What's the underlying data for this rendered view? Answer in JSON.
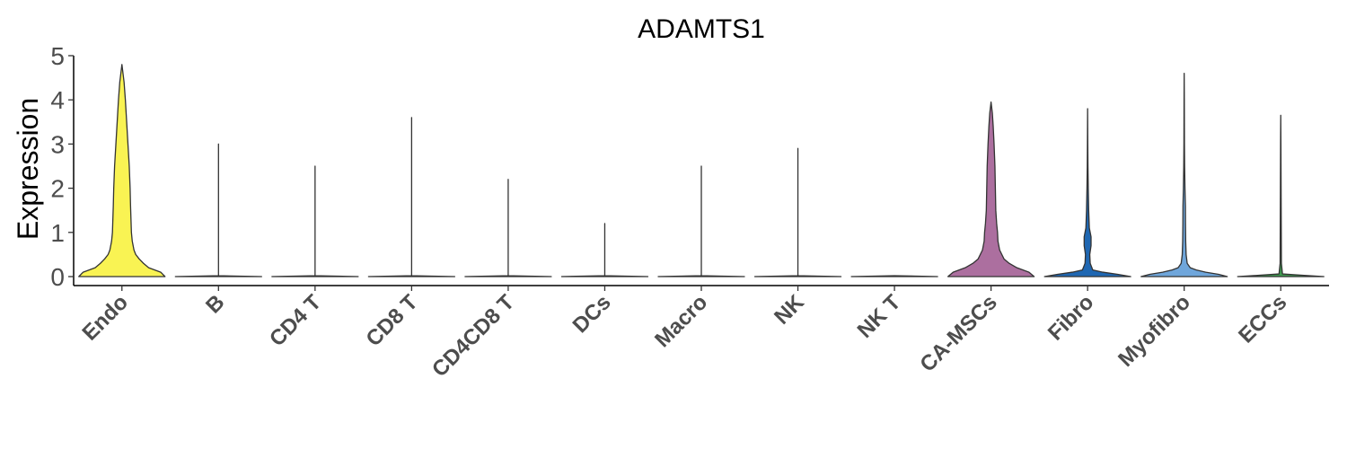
{
  "chart_data": {
    "type": "violin",
    "title": "ADAMTS1",
    "xlabel": "",
    "ylabel": "Expression",
    "ylim": [
      0,
      5
    ],
    "yticks": [
      0,
      1,
      2,
      3,
      4,
      5
    ],
    "grid": false,
    "legend": "none",
    "categories": [
      "Endo",
      "B",
      "CD4 T",
      "CD8 T",
      "CD4CD8 T",
      "DCs",
      "Macro",
      "NK",
      "NK T",
      "CA-MSCs",
      "Fibro",
      "Myofibro",
      "ECCs"
    ],
    "series": [
      {
        "category": "Endo",
        "max": 4.8,
        "color": "#F9F353",
        "density": [
          [
            0,
            1.0
          ],
          [
            0.1,
            0.9
          ],
          [
            0.2,
            0.62
          ],
          [
            0.3,
            0.5
          ],
          [
            0.4,
            0.4
          ],
          [
            0.5,
            0.32
          ],
          [
            0.6,
            0.28
          ],
          [
            0.8,
            0.24
          ],
          [
            1.0,
            0.22
          ],
          [
            1.3,
            0.21
          ],
          [
            1.6,
            0.2
          ],
          [
            2.0,
            0.19
          ],
          [
            2.5,
            0.17
          ],
          [
            3.0,
            0.14
          ],
          [
            3.5,
            0.11
          ],
          [
            4.0,
            0.08
          ],
          [
            4.4,
            0.05
          ],
          [
            4.8,
            0.0
          ]
        ]
      },
      {
        "category": "B",
        "max": 3.0,
        "color": "#808080",
        "density": [
          [
            0,
            1.0
          ],
          [
            0.02,
            0.0
          ],
          [
            3.0,
            0.0
          ]
        ]
      },
      {
        "category": "CD4 T",
        "max": 2.5,
        "color": "#808080",
        "density": [
          [
            0,
            1.0
          ],
          [
            0.02,
            0.0
          ],
          [
            2.5,
            0.0
          ]
        ]
      },
      {
        "category": "CD8 T",
        "max": 3.6,
        "color": "#808080",
        "density": [
          [
            0,
            1.0
          ],
          [
            0.02,
            0.0
          ],
          [
            3.6,
            0.0
          ]
        ]
      },
      {
        "category": "CD4CD8 T",
        "max": 2.2,
        "color": "#808080",
        "density": [
          [
            0,
            1.0
          ],
          [
            0.02,
            0.0
          ],
          [
            2.2,
            0.0
          ]
        ]
      },
      {
        "category": "DCs",
        "max": 1.2,
        "color": "#808080",
        "density": [
          [
            0,
            1.0
          ],
          [
            0.02,
            0.0
          ],
          [
            1.2,
            0.0
          ]
        ]
      },
      {
        "category": "Macro",
        "max": 2.5,
        "color": "#808080",
        "density": [
          [
            0,
            1.0
          ],
          [
            0.02,
            0.0
          ],
          [
            2.5,
            0.0
          ]
        ]
      },
      {
        "category": "NK",
        "max": 2.9,
        "color": "#808080",
        "density": [
          [
            0,
            1.0
          ],
          [
            0.02,
            0.0
          ],
          [
            2.9,
            0.0
          ]
        ]
      },
      {
        "category": "NK T",
        "max": 0.0,
        "color": "#808080",
        "density": [
          [
            0,
            1.0
          ],
          [
            0.02,
            0.0
          ]
        ]
      },
      {
        "category": "CA-MSCs",
        "max": 3.95,
        "color": "#AC6F9F",
        "density": [
          [
            0,
            1.0
          ],
          [
            0.1,
            0.88
          ],
          [
            0.2,
            0.6
          ],
          [
            0.3,
            0.42
          ],
          [
            0.4,
            0.3
          ],
          [
            0.6,
            0.2
          ],
          [
            0.8,
            0.16
          ],
          [
            1.0,
            0.15
          ],
          [
            1.2,
            0.13
          ],
          [
            1.5,
            0.11
          ],
          [
            2.0,
            0.1
          ],
          [
            2.5,
            0.09
          ],
          [
            3.0,
            0.07
          ],
          [
            3.4,
            0.05
          ],
          [
            3.7,
            0.03
          ],
          [
            3.95,
            0.0
          ]
        ]
      },
      {
        "category": "Fibro",
        "max": 3.8,
        "color": "#1F67B2",
        "density": [
          [
            0,
            1.0
          ],
          [
            0.05,
            0.7
          ],
          [
            0.1,
            0.35
          ],
          [
            0.15,
            0.12
          ],
          [
            0.3,
            0.06
          ],
          [
            0.5,
            0.05
          ],
          [
            0.7,
            0.08
          ],
          [
            0.9,
            0.08
          ],
          [
            1.1,
            0.04
          ],
          [
            1.5,
            0.025
          ],
          [
            2.0,
            0.015
          ],
          [
            2.5,
            0.008
          ],
          [
            3.0,
            0.004
          ],
          [
            3.8,
            0.0
          ]
        ]
      },
      {
        "category": "Myofibro",
        "max": 4.6,
        "color": "#6FA6DB",
        "density": [
          [
            0,
            1.0
          ],
          [
            0.05,
            0.8
          ],
          [
            0.1,
            0.5
          ],
          [
            0.15,
            0.28
          ],
          [
            0.2,
            0.14
          ],
          [
            0.3,
            0.07
          ],
          [
            0.5,
            0.045
          ],
          [
            0.8,
            0.035
          ],
          [
            1.2,
            0.03
          ],
          [
            1.6,
            0.028
          ],
          [
            2.0,
            0.018
          ],
          [
            2.5,
            0.01
          ],
          [
            3.0,
            0.006
          ],
          [
            4.0,
            0.003
          ],
          [
            4.6,
            0.0
          ]
        ]
      },
      {
        "category": "ECCs",
        "max": 3.65,
        "color": "#3E9A4F",
        "density": [
          [
            0,
            1.0
          ],
          [
            0.03,
            0.5
          ],
          [
            0.06,
            0.04
          ],
          [
            0.3,
            0.015
          ],
          [
            1.0,
            0.012
          ],
          [
            2.0,
            0.008
          ],
          [
            3.0,
            0.004
          ],
          [
            3.65,
            0.0
          ]
        ]
      }
    ]
  }
}
